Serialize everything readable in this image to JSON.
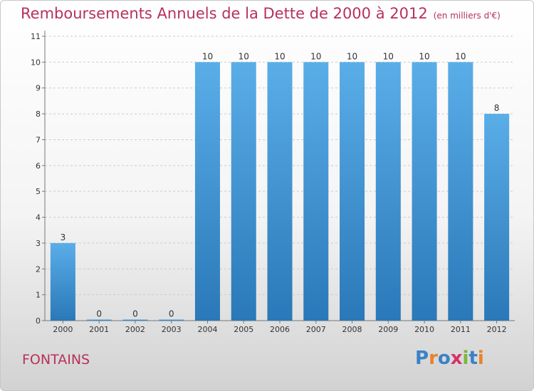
{
  "title": "Remboursements Annuels de la Dette de 2000 à 2012",
  "unit": "(en milliers d'€)",
  "location": "FONTAINS",
  "logo": {
    "letters": [
      "P",
      "r",
      "o",
      "x",
      "i",
      "t",
      "i"
    ],
    "colors": [
      "#3a82c8",
      "#e8822a",
      "#3a82c8",
      "#d4326a",
      "#7ab83a",
      "#3a82c8",
      "#e8822a"
    ]
  },
  "chart_data": {
    "type": "bar",
    "title": "Remboursements Annuels de la Dette de 2000 à 2012",
    "xlabel": "",
    "ylabel": "",
    "categories": [
      "2000",
      "2001",
      "2002",
      "2003",
      "2004",
      "2005",
      "2006",
      "2007",
      "2008",
      "2009",
      "2010",
      "2011",
      "2012"
    ],
    "values": [
      3,
      0,
      0,
      0,
      10,
      10,
      10,
      10,
      10,
      10,
      10,
      10,
      8
    ],
    "labels": [
      "3",
      "0",
      "0",
      "0",
      "10",
      "10",
      "10",
      "10",
      "10",
      "10",
      "10",
      "10",
      "8"
    ],
    "ylim": [
      0,
      11
    ],
    "yticks": [
      "0",
      "1",
      "2",
      "3",
      "4",
      "5",
      "6",
      "7",
      "8",
      "9",
      "10",
      "11"
    ],
    "grid": true,
    "colors": {
      "bar_top": "#5aaee8",
      "bar_bottom": "#2a78b8",
      "grid": "#cccccc",
      "text": "#333333"
    }
  }
}
